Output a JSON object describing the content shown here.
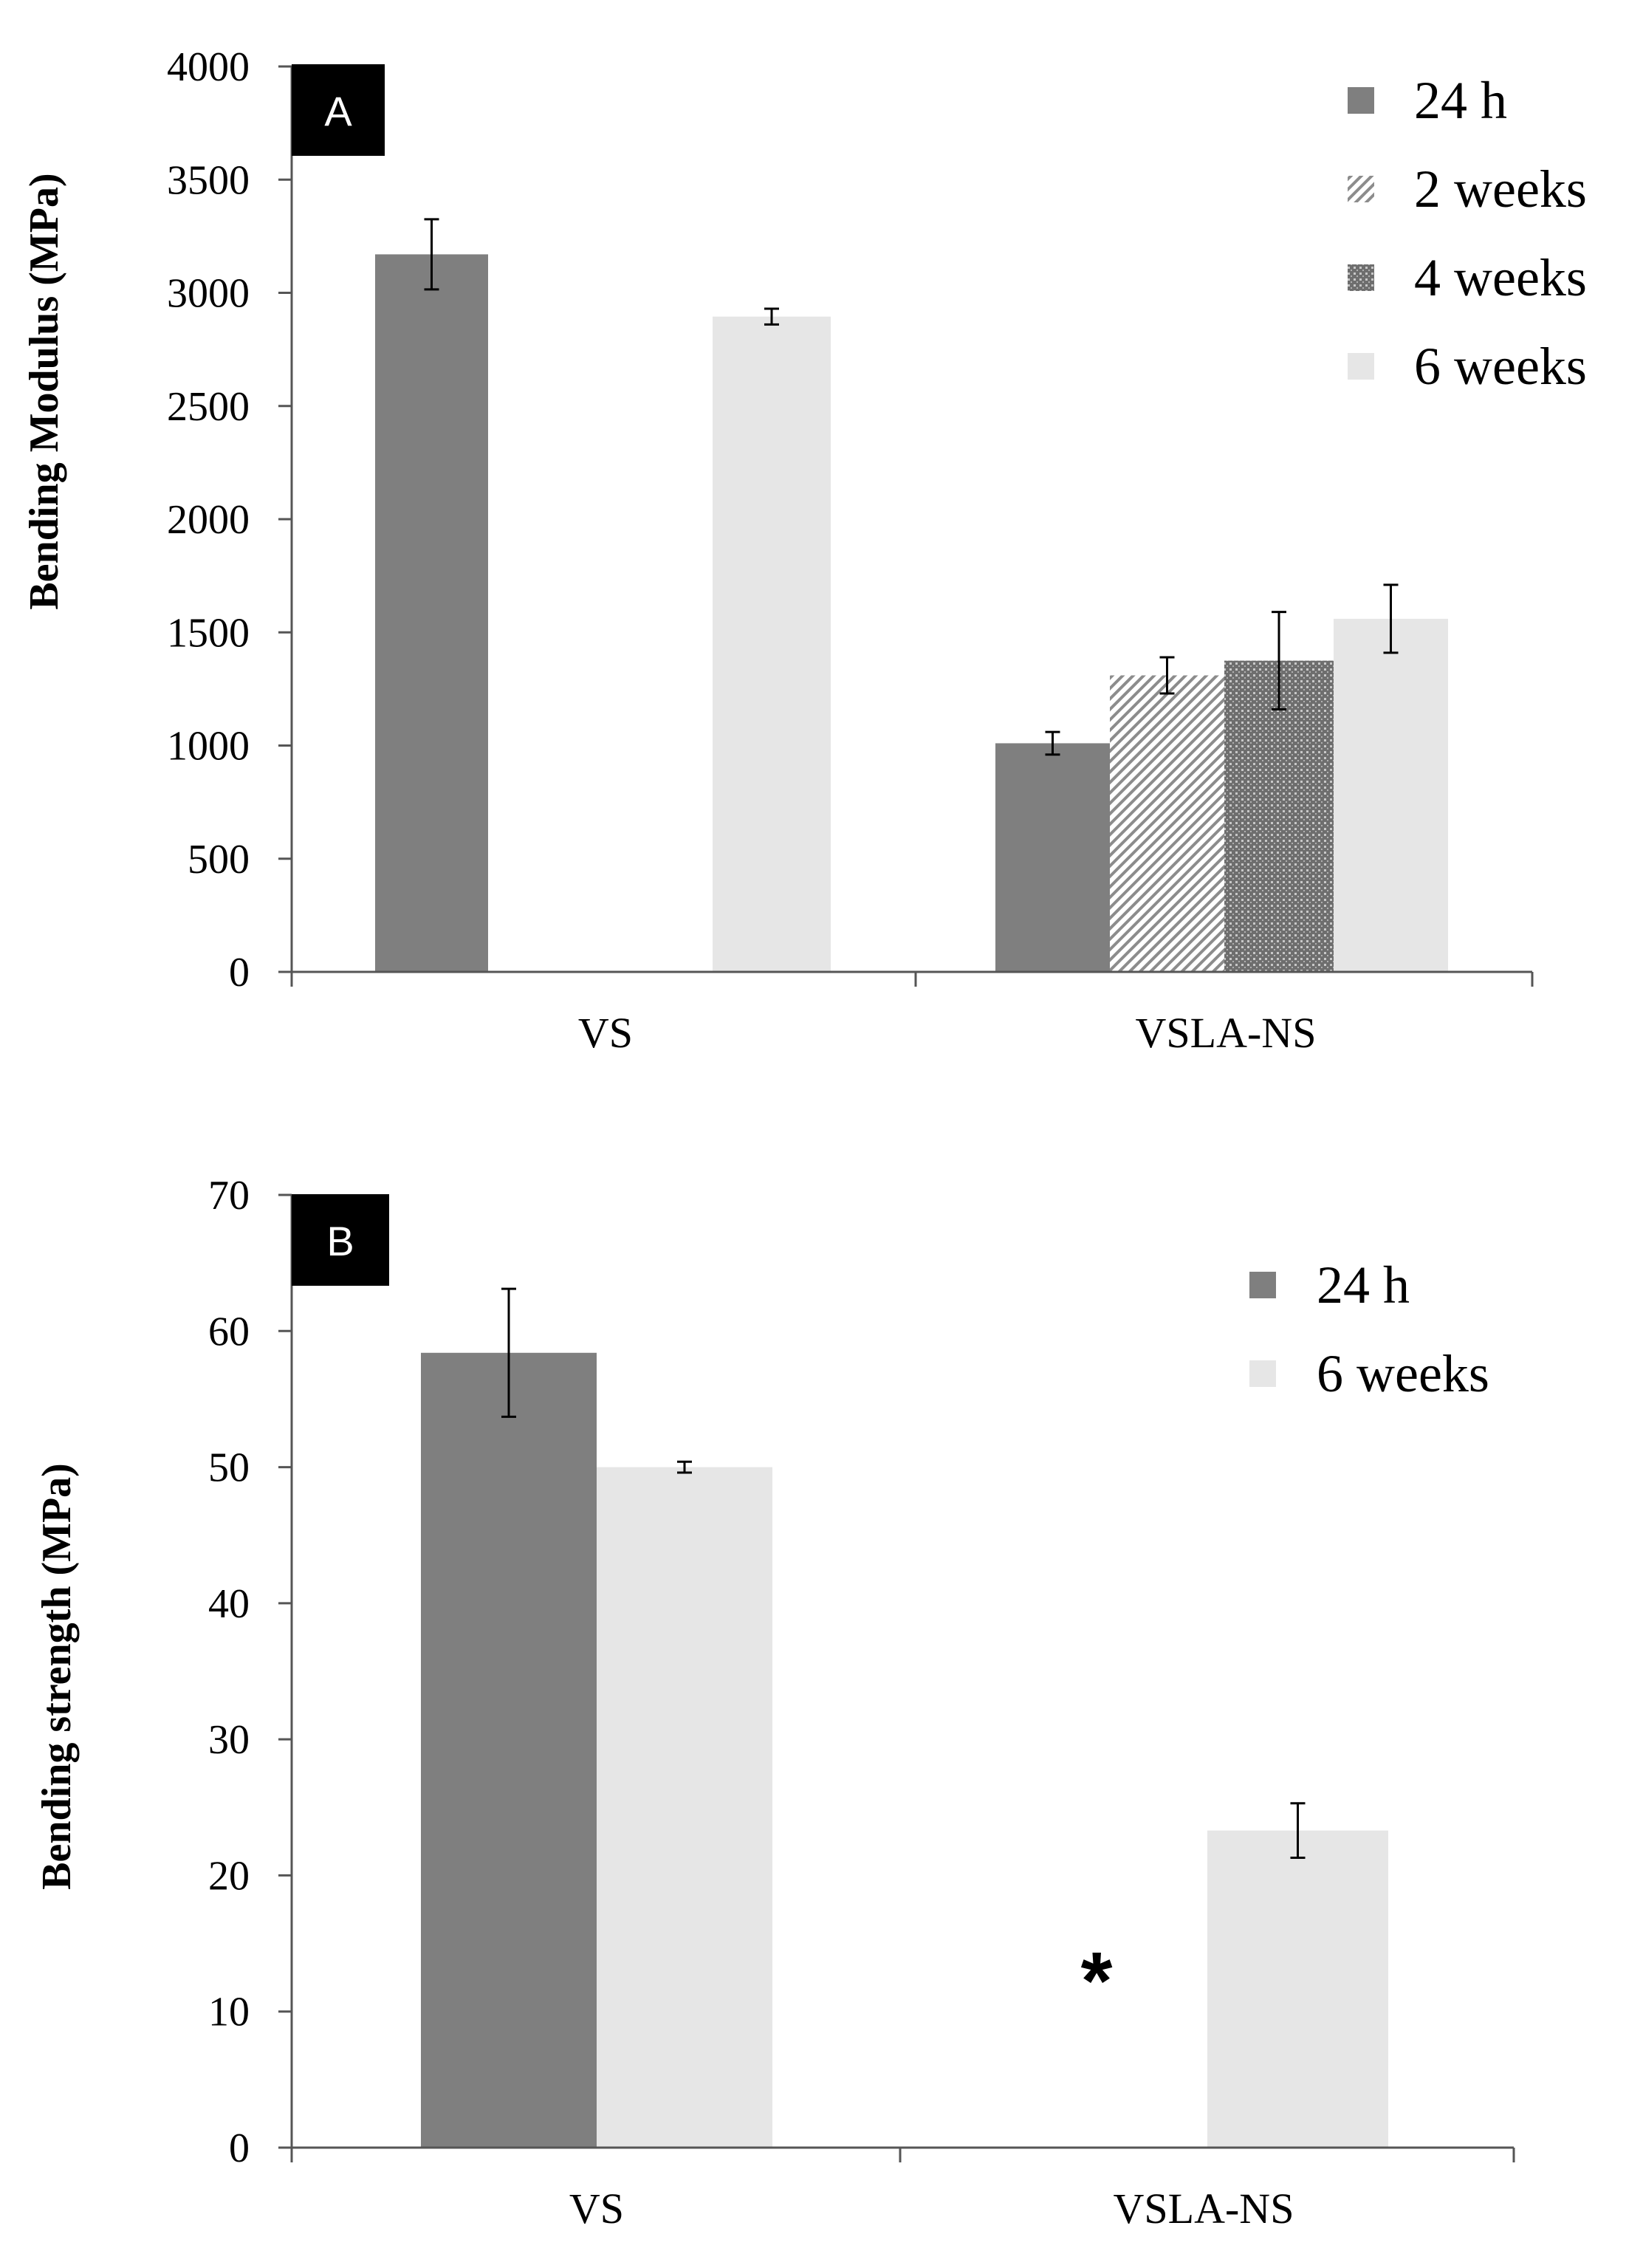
{
  "colors": {
    "h24": "#7f7f7f",
    "w2": "#8c8c8c",
    "w4": "#7a7a7a",
    "w6": "#e6e6e6"
  },
  "chart_data": [
    {
      "type": "bar",
      "panel": "A",
      "title": "",
      "xlabel": "",
      "ylabel": "Bending Modulus (MPa)",
      "ylim": [
        0,
        4000
      ],
      "yticks": [
        "0",
        "500",
        "1000",
        "1500",
        "2000",
        "2500",
        "3000",
        "3500",
        "4000"
      ],
      "categories": [
        "VS",
        "VSLA-NS"
      ],
      "legend_position": "top-right",
      "series": [
        {
          "name": "24 h",
          "key": "h24",
          "pattern": "solid",
          "values": [
            3170,
            1010
          ],
          "errors": [
            155,
            50
          ]
        },
        {
          "name": "2 weeks",
          "key": "w2",
          "pattern": "hatch",
          "values": [
            null,
            1310
          ],
          "errors": [
            null,
            80
          ]
        },
        {
          "name": "4 weeks",
          "key": "w4",
          "pattern": "dots",
          "values": [
            null,
            1375
          ],
          "errors": [
            null,
            215
          ]
        },
        {
          "name": "6 weeks",
          "key": "w6",
          "pattern": "solid",
          "values": [
            2895,
            1560
          ],
          "errors": [
            35,
            150
          ]
        }
      ]
    },
    {
      "type": "bar",
      "panel": "B",
      "title": "",
      "xlabel": "",
      "ylabel": "Bending strength (MPa)",
      "ylim": [
        0,
        70
      ],
      "yticks": [
        "0",
        "10",
        "20",
        "30",
        "40",
        "50",
        "60",
        "70"
      ],
      "categories": [
        "VS",
        "VSLA-NS"
      ],
      "legend_position": "top-right",
      "annotation": "*",
      "series": [
        {
          "name": "24 h",
          "key": "h24",
          "pattern": "solid",
          "values": [
            58.4,
            null
          ],
          "errors": [
            4.7,
            null
          ]
        },
        {
          "name": "6 weeks",
          "key": "w6",
          "pattern": "solid",
          "values": [
            50.0,
            23.3
          ],
          "errors": [
            0.4,
            2.0
          ]
        }
      ]
    }
  ]
}
